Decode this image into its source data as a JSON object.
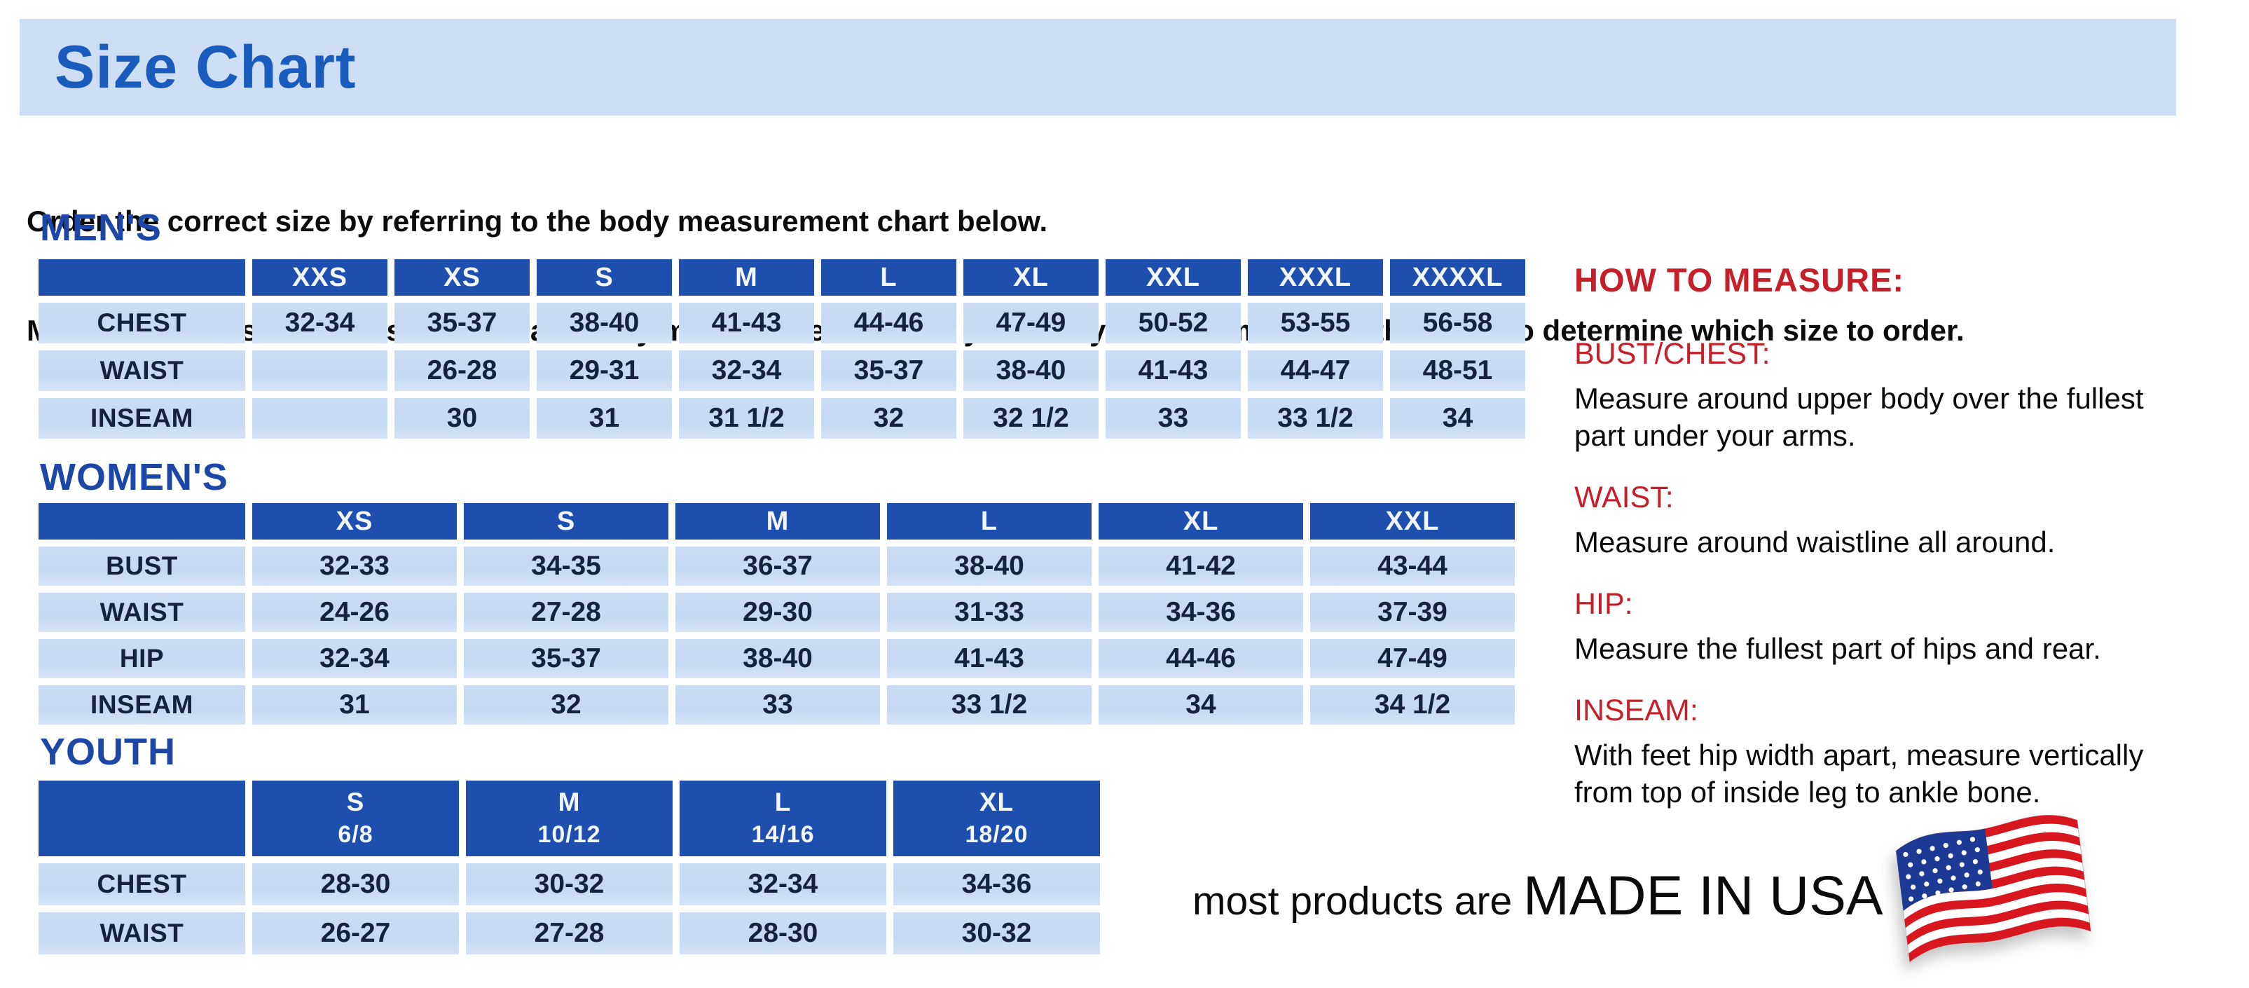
{
  "page": {
    "title": "Size Chart"
  },
  "intro": {
    "line1": "Order the correct size by referring to the body measurement chart below.",
    "line2": "Measurements shown on size chart are body measurements.  Find your body measurements on the chart to determine which size to order."
  },
  "tables": {
    "mens": {
      "heading": "MEN'S",
      "columns": [
        "XXS",
        "XS",
        "S",
        "M",
        "L",
        "XL",
        "XXL",
        "XXXL",
        "XXXXL"
      ],
      "rows": [
        {
          "label": "CHEST",
          "values": [
            "32-34",
            "35-37",
            "38-40",
            "41-43",
            "44-46",
            "47-49",
            "50-52",
            "53-55",
            "56-58"
          ]
        },
        {
          "label": "WAIST",
          "values": [
            "",
            "26-28",
            "29-31",
            "32-34",
            "35-37",
            "38-40",
            "41-43",
            "44-47",
            "48-51"
          ]
        },
        {
          "label": "INSEAM",
          "values": [
            "",
            "30",
            "31",
            "31 1/2",
            "32",
            "32 1/2",
            "33",
            "33 1/2",
            "34"
          ]
        }
      ]
    },
    "womens": {
      "heading": "WOMEN'S",
      "columns": [
        "XS",
        "S",
        "M",
        "L",
        "XL",
        "XXL"
      ],
      "rows": [
        {
          "label": "BUST",
          "values": [
            "32-33",
            "34-35",
            "36-37",
            "38-40",
            "41-42",
            "43-44"
          ]
        },
        {
          "label": "WAIST",
          "values": [
            "24-26",
            "27-28",
            "29-30",
            "31-33",
            "34-36",
            "37-39"
          ]
        },
        {
          "label": "HIP",
          "values": [
            "32-34",
            "35-37",
            "38-40",
            "41-43",
            "44-46",
            "47-49"
          ]
        },
        {
          "label": "INSEAM",
          "values": [
            "31",
            "32",
            "33",
            "33 1/2",
            "34",
            "34 1/2"
          ]
        }
      ]
    },
    "youth": {
      "heading": "YOUTH",
      "columns": [
        {
          "size": "S",
          "range": "6/8"
        },
        {
          "size": "M",
          "range": "10/12"
        },
        {
          "size": "L",
          "range": "14/16"
        },
        {
          "size": "XL",
          "range": "18/20"
        }
      ],
      "rows": [
        {
          "label": "CHEST",
          "values": [
            "28-30",
            "30-32",
            "32-34",
            "34-36"
          ]
        },
        {
          "label": "WAIST",
          "values": [
            "26-27",
            "27-28",
            "28-30",
            "30-32"
          ]
        }
      ]
    }
  },
  "how_to_measure": {
    "heading": "HOW TO MEASURE:",
    "items": [
      {
        "label": "BUST/CHEST:",
        "text": "Measure around upper body over the fullest part under your arms."
      },
      {
        "label": "WAIST:",
        "text": "Measure around waistline all around."
      },
      {
        "label": "HIP:",
        "text": "Measure the fullest part of hips and rear."
      },
      {
        "label": "INSEAM:",
        "text": "With feet hip width apart, measure vertically from top of inside leg to ankle bone."
      }
    ]
  },
  "footer": {
    "prefix": "most products are ",
    "emphasis": "MADE IN USA",
    "flag_icon": "usa-flag"
  },
  "colors": {
    "banner_bg": "#cddef5",
    "title_blue": "#1a5cbe",
    "section_heading_blue": "#1c47a7",
    "table_header_blue": "#1e4fae",
    "cell_text": "#15213d",
    "red": "#c5202a",
    "flag_blue": "#1c3a94",
    "flag_red": "#d8161f"
  }
}
